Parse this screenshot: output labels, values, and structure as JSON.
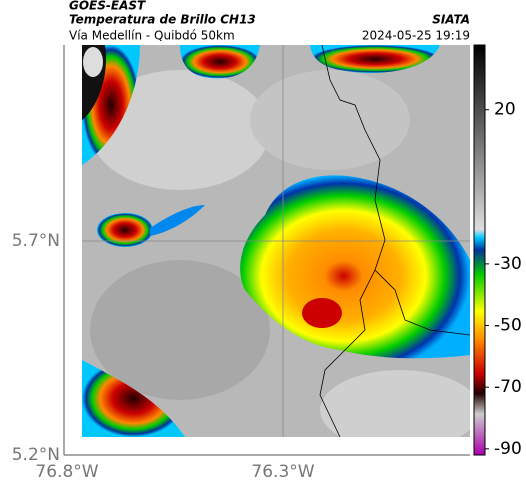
{
  "header": {
    "source": "GOES-EAST",
    "product": "Temperatura de Brillo CH13",
    "region": "Vía Medellín - Quibdó 50km",
    "agency": "SIATA",
    "timestamp": "2024-05-25 19:19"
  },
  "map": {
    "lat_labels": [
      "5.7°N",
      "5.2°N"
    ],
    "lon_labels": [
      "76.8°W",
      "76.3°W"
    ]
  },
  "colorbar": {
    "clim": [
      -92,
      41
    ],
    "ticks": [
      20,
      -30,
      -50,
      -70,
      -90
    ]
  }
}
